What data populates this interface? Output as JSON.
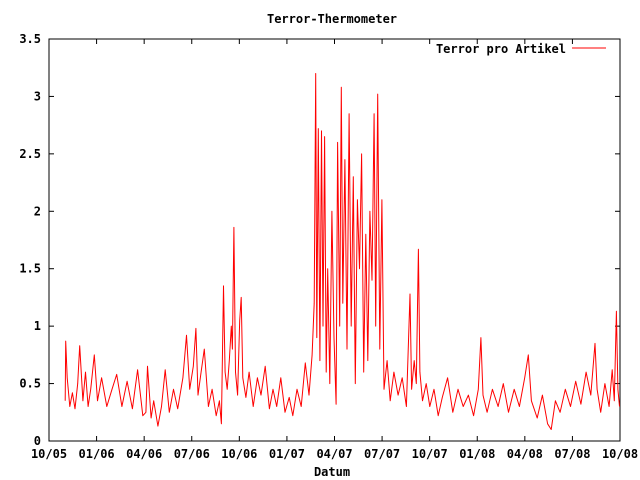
{
  "chart_data": {
    "type": "line",
    "title": "Terror-Thermometer",
    "xlabel": "Datum",
    "ylabel": "",
    "xlim": [
      "2005-10-01",
      "2008-10-01"
    ],
    "ylim": [
      0,
      3.5
    ],
    "x_ticks": [
      "10/05",
      "01/06",
      "04/06",
      "07/06",
      "10/06",
      "01/07",
      "04/07",
      "07/07",
      "10/07",
      "01/08",
      "04/08",
      "07/08",
      "10/08"
    ],
    "y_ticks": [
      "0",
      "0.5",
      "1",
      "1.5",
      "2",
      "2.5",
      "3",
      "3.5"
    ],
    "legend_position": "top-right",
    "grid": false,
    "series": [
      {
        "name": "Terror pro Artikel",
        "color": "#ff0000",
        "points": [
          [
            "2005-11-01",
            0.35
          ],
          [
            "2005-11-02",
            0.87
          ],
          [
            "2005-11-05",
            0.55
          ],
          [
            "2005-11-10",
            0.3
          ],
          [
            "2005-11-15",
            0.42
          ],
          [
            "2005-11-20",
            0.28
          ],
          [
            "2005-11-25",
            0.5
          ],
          [
            "2005-11-29",
            0.83
          ],
          [
            "2005-12-05",
            0.35
          ],
          [
            "2005-12-10",
            0.6
          ],
          [
            "2005-12-15",
            0.3
          ],
          [
            "2005-12-20",
            0.45
          ],
          [
            "2005-12-27",
            0.75
          ],
          [
            "2006-01-02",
            0.35
          ],
          [
            "2006-01-10",
            0.55
          ],
          [
            "2006-01-20",
            0.3
          ],
          [
            "2006-01-30",
            0.45
          ],
          [
            "2006-02-08",
            0.58
          ],
          [
            "2006-02-18",
            0.3
          ],
          [
            "2006-02-28",
            0.52
          ],
          [
            "2006-03-10",
            0.28
          ],
          [
            "2006-03-20",
            0.62
          ],
          [
            "2006-03-30",
            0.22
          ],
          [
            "2006-04-05",
            0.25
          ],
          [
            "2006-04-08",
            0.65
          ],
          [
            "2006-04-15",
            0.2
          ],
          [
            "2006-04-20",
            0.35
          ],
          [
            "2006-04-28",
            0.13
          ],
          [
            "2006-05-05",
            0.3
          ],
          [
            "2006-05-12",
            0.62
          ],
          [
            "2006-05-20",
            0.25
          ],
          [
            "2006-05-28",
            0.45
          ],
          [
            "2006-06-05",
            0.28
          ],
          [
            "2006-06-15",
            0.55
          ],
          [
            "2006-06-22",
            0.92
          ],
          [
            "2006-06-28",
            0.45
          ],
          [
            "2006-07-05",
            0.65
          ],
          [
            "2006-07-10",
            0.98
          ],
          [
            "2006-07-14",
            0.4
          ],
          [
            "2006-07-20",
            0.6
          ],
          [
            "2006-07-26",
            0.8
          ],
          [
            "2006-08-03",
            0.3
          ],
          [
            "2006-08-10",
            0.45
          ],
          [
            "2006-08-18",
            0.22
          ],
          [
            "2006-08-24",
            0.35
          ],
          [
            "2006-08-28",
            0.15
          ],
          [
            "2006-09-01",
            1.35
          ],
          [
            "2006-09-04",
            0.6
          ],
          [
            "2006-09-08",
            0.45
          ],
          [
            "2006-09-12",
            0.7
          ],
          [
            "2006-09-16",
            1.0
          ],
          [
            "2006-09-18",
            0.8
          ],
          [
            "2006-09-21",
            1.86
          ],
          [
            "2006-09-24",
            0.6
          ],
          [
            "2006-09-28",
            0.4
          ],
          [
            "2006-10-02",
            1.05
          ],
          [
            "2006-10-05",
            1.25
          ],
          [
            "2006-10-08",
            0.55
          ],
          [
            "2006-10-14",
            0.38
          ],
          [
            "2006-10-20",
            0.6
          ],
          [
            "2006-10-28",
            0.3
          ],
          [
            "2006-11-05",
            0.55
          ],
          [
            "2006-11-12",
            0.4
          ],
          [
            "2006-11-20",
            0.65
          ],
          [
            "2006-11-28",
            0.28
          ],
          [
            "2006-12-05",
            0.45
          ],
          [
            "2006-12-12",
            0.3
          ],
          [
            "2006-12-20",
            0.55
          ],
          [
            "2006-12-28",
            0.25
          ],
          [
            "2007-01-05",
            0.38
          ],
          [
            "2007-01-12",
            0.22
          ],
          [
            "2007-01-20",
            0.45
          ],
          [
            "2007-01-28",
            0.3
          ],
          [
            "2007-02-05",
            0.68
          ],
          [
            "2007-02-12",
            0.4
          ],
          [
            "2007-02-18",
            0.75
          ],
          [
            "2007-02-22",
            1.2
          ],
          [
            "2007-02-25",
            3.2
          ],
          [
            "2007-02-27",
            0.9
          ],
          [
            "2007-03-02",
            2.72
          ],
          [
            "2007-03-05",
            0.7
          ],
          [
            "2007-03-08",
            2.7
          ],
          [
            "2007-03-11",
            1.0
          ],
          [
            "2007-03-14",
            2.65
          ],
          [
            "2007-03-17",
            0.6
          ],
          [
            "2007-03-20",
            1.5
          ],
          [
            "2007-03-24",
            0.5
          ],
          [
            "2007-03-28",
            2.0
          ],
          [
            "2007-04-01",
            0.9
          ],
          [
            "2007-04-05",
            0.32
          ],
          [
            "2007-04-08",
            2.6
          ],
          [
            "2007-04-12",
            1.0
          ],
          [
            "2007-04-15",
            3.08
          ],
          [
            "2007-04-18",
            1.2
          ],
          [
            "2007-04-22",
            2.45
          ],
          [
            "2007-04-26",
            0.8
          ],
          [
            "2007-04-30",
            2.85
          ],
          [
            "2007-05-04",
            1.0
          ],
          [
            "2007-05-08",
            2.3
          ],
          [
            "2007-05-12",
            0.5
          ],
          [
            "2007-05-16",
            2.1
          ],
          [
            "2007-05-20",
            1.5
          ],
          [
            "2007-05-24",
            2.5
          ],
          [
            "2007-05-28",
            0.6
          ],
          [
            "2007-06-01",
            1.8
          ],
          [
            "2007-06-05",
            0.7
          ],
          [
            "2007-06-09",
            2.0
          ],
          [
            "2007-06-13",
            1.4
          ],
          [
            "2007-06-17",
            2.85
          ],
          [
            "2007-06-20",
            1.0
          ],
          [
            "2007-06-24",
            3.02
          ],
          [
            "2007-06-28",
            0.8
          ],
          [
            "2007-07-02",
            2.1
          ],
          [
            "2007-07-06",
            0.45
          ],
          [
            "2007-07-12",
            0.7
          ],
          [
            "2007-07-18",
            0.35
          ],
          [
            "2007-07-25",
            0.6
          ],
          [
            "2007-08-02",
            0.4
          ],
          [
            "2007-08-10",
            0.55
          ],
          [
            "2007-08-18",
            0.3
          ],
          [
            "2007-08-25",
            1.28
          ],
          [
            "2007-08-28",
            0.45
          ],
          [
            "2007-09-02",
            0.7
          ],
          [
            "2007-09-06",
            0.5
          ],
          [
            "2007-09-10",
            1.67
          ],
          [
            "2007-09-13",
            0.6
          ],
          [
            "2007-09-18",
            0.35
          ],
          [
            "2007-09-25",
            0.5
          ],
          [
            "2007-10-02",
            0.3
          ],
          [
            "2007-10-10",
            0.45
          ],
          [
            "2007-10-18",
            0.22
          ],
          [
            "2007-10-26",
            0.38
          ],
          [
            "2007-11-05",
            0.55
          ],
          [
            "2007-11-15",
            0.25
          ],
          [
            "2007-11-25",
            0.45
          ],
          [
            "2007-12-05",
            0.3
          ],
          [
            "2007-12-15",
            0.4
          ],
          [
            "2007-12-25",
            0.22
          ],
          [
            "2008-01-03",
            0.45
          ],
          [
            "2008-01-08",
            0.9
          ],
          [
            "2008-01-12",
            0.4
          ],
          [
            "2008-01-20",
            0.25
          ],
          [
            "2008-01-30",
            0.45
          ],
          [
            "2008-02-10",
            0.3
          ],
          [
            "2008-02-20",
            0.5
          ],
          [
            "2008-03-01",
            0.25
          ],
          [
            "2008-03-12",
            0.45
          ],
          [
            "2008-03-22",
            0.3
          ],
          [
            "2008-04-01",
            0.55
          ],
          [
            "2008-04-08",
            0.75
          ],
          [
            "2008-04-14",
            0.35
          ],
          [
            "2008-04-25",
            0.2
          ],
          [
            "2008-05-05",
            0.4
          ],
          [
            "2008-05-15",
            0.15
          ],
          [
            "2008-05-22",
            0.1
          ],
          [
            "2008-05-30",
            0.35
          ],
          [
            "2008-06-08",
            0.25
          ],
          [
            "2008-06-18",
            0.45
          ],
          [
            "2008-06-28",
            0.3
          ],
          [
            "2008-07-08",
            0.52
          ],
          [
            "2008-07-18",
            0.32
          ],
          [
            "2008-07-28",
            0.6
          ],
          [
            "2008-08-06",
            0.4
          ],
          [
            "2008-08-14",
            0.85
          ],
          [
            "2008-08-18",
            0.45
          ],
          [
            "2008-08-25",
            0.25
          ],
          [
            "2008-09-02",
            0.5
          ],
          [
            "2008-09-10",
            0.3
          ],
          [
            "2008-09-16",
            0.62
          ],
          [
            "2008-09-20",
            0.35
          ],
          [
            "2008-09-24",
            1.13
          ],
          [
            "2008-09-27",
            0.45
          ],
          [
            "2008-09-30",
            0.3
          ]
        ]
      }
    ]
  }
}
